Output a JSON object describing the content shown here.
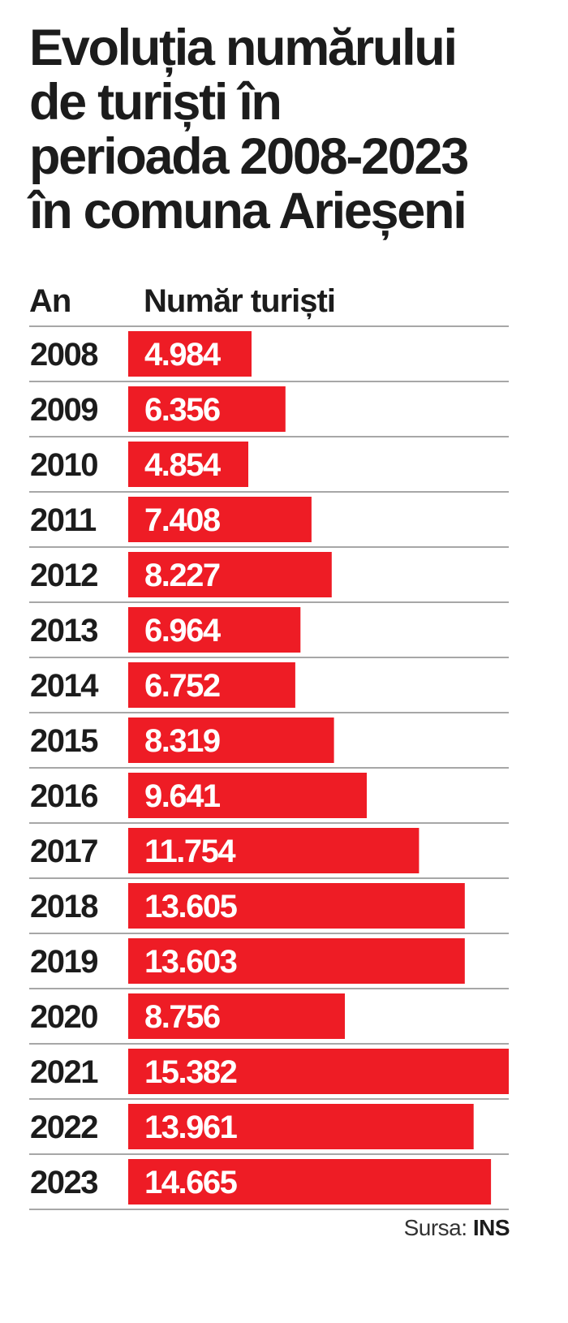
{
  "title_lines": [
    "Evoluția numărului",
    "de turiști în",
    "perioada 2008-2023",
    "în comuna Arieșeni"
  ],
  "columns": {
    "year": "An",
    "value": "Număr turiști"
  },
  "source": {
    "label": "Sursa:",
    "name": "INS"
  },
  "colors": {
    "bar": "#ee1c25",
    "bar_text": "#ffffff",
    "divider": "#8a8a8a",
    "text": "#1c1c1c"
  },
  "chart_data": {
    "type": "bar",
    "orientation": "horizontal",
    "title": "Evoluția numărului de turiști în perioada 2008-2023 în comuna Arieșeni",
    "xlabel": "Număr turiști",
    "ylabel": "An",
    "categories": [
      "2008",
      "2009",
      "2010",
      "2011",
      "2012",
      "2013",
      "2014",
      "2015",
      "2016",
      "2017",
      "2018",
      "2019",
      "2020",
      "2021",
      "2022",
      "2023"
    ],
    "values": [
      4984,
      6356,
      4854,
      7408,
      8227,
      6964,
      6752,
      8319,
      9641,
      11754,
      13605,
      13603,
      8756,
      15382,
      13961,
      14665
    ],
    "labels": [
      "4.984",
      "6.356",
      "4.854",
      "7.408",
      "8.227",
      "6.964",
      "6.752",
      "8.319",
      "9.641",
      "11.754",
      "13.605",
      "13.603",
      "8.756",
      "15.382",
      "13.961",
      "14.665"
    ],
    "xlim": [
      0,
      15382
    ],
    "grid": false,
    "legend": "none"
  }
}
